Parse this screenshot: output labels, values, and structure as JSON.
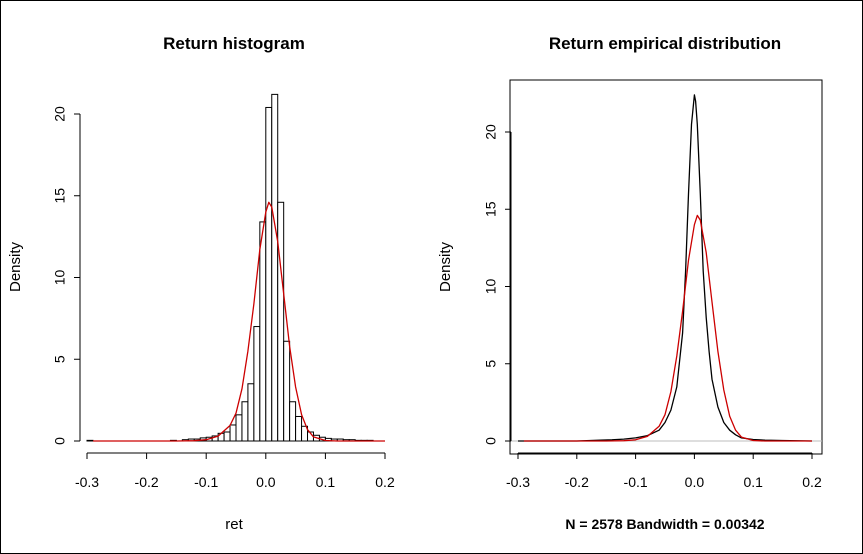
{
  "chart_data": [
    {
      "type": "histogram",
      "title": "Return histogram",
      "xlabel": "ret",
      "ylabel": "Density",
      "xlim": [
        -0.3,
        0.2
      ],
      "ylim": [
        0,
        21
      ],
      "x_ticks": [
        -0.3,
        -0.2,
        -0.1,
        0.0,
        0.1,
        0.2
      ],
      "x_tick_labels": [
        "-0.3",
        "-0.2",
        "-0.1",
        "0.0",
        "0.1",
        "0.2"
      ],
      "y_ticks": [
        0,
        5,
        10,
        15,
        20
      ],
      "y_tick_labels": [
        "0",
        "5",
        "10",
        "15",
        "20"
      ],
      "bin_width": 0.01,
      "bins": [
        {
          "x0": -0.3,
          "x1": -0.29,
          "density": 0.04
        },
        {
          "x0": -0.16,
          "x1": -0.15,
          "density": 0.04
        },
        {
          "x0": -0.14,
          "x1": -0.13,
          "density": 0.08
        },
        {
          "x0": -0.13,
          "x1": -0.12,
          "density": 0.12
        },
        {
          "x0": -0.12,
          "x1": -0.11,
          "density": 0.12
        },
        {
          "x0": -0.11,
          "x1": -0.1,
          "density": 0.19
        },
        {
          "x0": -0.1,
          "x1": -0.09,
          "density": 0.23
        },
        {
          "x0": -0.09,
          "x1": -0.08,
          "density": 0.31
        },
        {
          "x0": -0.08,
          "x1": -0.07,
          "density": 0.47
        },
        {
          "x0": -0.07,
          "x1": -0.06,
          "density": 0.55
        },
        {
          "x0": -0.06,
          "x1": -0.05,
          "density": 0.98
        },
        {
          "x0": -0.05,
          "x1": -0.04,
          "density": 1.6
        },
        {
          "x0": -0.04,
          "x1": -0.03,
          "density": 2.4
        },
        {
          "x0": -0.03,
          "x1": -0.02,
          "density": 3.5
        },
        {
          "x0": -0.02,
          "x1": -0.01,
          "density": 7.0
        },
        {
          "x0": -0.01,
          "x1": 0.0,
          "density": 13.4
        },
        {
          "x0": 0.0,
          "x1": 0.01,
          "density": 20.4
        },
        {
          "x0": 0.01,
          "x1": 0.02,
          "density": 21.2
        },
        {
          "x0": 0.02,
          "x1": 0.03,
          "density": 14.6
        },
        {
          "x0": 0.03,
          "x1": 0.04,
          "density": 6.1
        },
        {
          "x0": 0.04,
          "x1": 0.05,
          "density": 2.4
        },
        {
          "x0": 0.05,
          "x1": 0.06,
          "density": 1.5
        },
        {
          "x0": 0.06,
          "x1": 0.07,
          "density": 0.9
        },
        {
          "x0": 0.07,
          "x1": 0.08,
          "density": 0.55
        },
        {
          "x0": 0.08,
          "x1": 0.09,
          "density": 0.35
        },
        {
          "x0": 0.09,
          "x1": 0.1,
          "density": 0.23
        },
        {
          "x0": 0.1,
          "x1": 0.11,
          "density": 0.16
        },
        {
          "x0": 0.11,
          "x1": 0.12,
          "density": 0.12
        },
        {
          "x0": 0.12,
          "x1": 0.13,
          "density": 0.12
        },
        {
          "x0": 0.13,
          "x1": 0.14,
          "density": 0.08
        },
        {
          "x0": 0.14,
          "x1": 0.15,
          "density": 0.08
        },
        {
          "x0": 0.15,
          "x1": 0.16,
          "density": 0.04
        },
        {
          "x0": 0.16,
          "x1": 0.17,
          "density": 0.04
        },
        {
          "x0": 0.17,
          "x1": 0.18,
          "density": 0.04
        }
      ],
      "series": [
        {
          "type": "line",
          "color": "#cc0000",
          "x": [
            -0.29,
            -0.15,
            -0.12,
            -0.1,
            -0.08,
            -0.06,
            -0.05,
            -0.04,
            -0.03,
            -0.02,
            -0.01,
            0.0,
            0.005,
            0.01,
            0.02,
            0.03,
            0.04,
            0.05,
            0.06,
            0.07,
            0.08,
            0.1,
            0.12,
            0.2
          ],
          "y": [
            0.0,
            0.0,
            0.02,
            0.08,
            0.3,
            0.95,
            1.7,
            3.2,
            5.5,
            8.4,
            11.7,
            14.0,
            14.6,
            14.3,
            12.2,
            9.0,
            5.8,
            3.3,
            1.6,
            0.7,
            0.25,
            0.03,
            0.0,
            0.0
          ]
        }
      ]
    },
    {
      "type": "line",
      "title": "Return empirical distribution",
      "xlabel": "N = 2578   Bandwidth = 0.00342",
      "ylabel": "Density",
      "xlim": [
        -0.3,
        0.2
      ],
      "ylim": [
        0,
        22.5
      ],
      "x_ticks": [
        -0.3,
        -0.2,
        -0.1,
        0.0,
        0.1,
        0.2
      ],
      "x_tick_labels": [
        "-0.3",
        "-0.2",
        "-0.1",
        "0.0",
        "0.1",
        "0.2"
      ],
      "y_ticks": [
        0,
        5,
        10,
        15,
        20
      ],
      "y_tick_labels": [
        "0",
        "5",
        "10",
        "15",
        "20"
      ],
      "baseline_color": "#bebebe",
      "series": [
        {
          "type": "line",
          "color": "#000000",
          "x": [
            -0.3,
            -0.2,
            -0.16,
            -0.14,
            -0.12,
            -0.1,
            -0.08,
            -0.06,
            -0.05,
            -0.04,
            -0.03,
            -0.02,
            -0.015,
            -0.01,
            -0.005,
            0.0,
            0.002,
            0.005,
            0.01,
            0.015,
            0.02,
            0.025,
            0.03,
            0.04,
            0.05,
            0.06,
            0.07,
            0.08,
            0.1,
            0.12,
            0.15,
            0.2
          ],
          "y": [
            0.0,
            0.0,
            0.05,
            0.08,
            0.12,
            0.2,
            0.35,
            0.7,
            1.2,
            2.0,
            3.5,
            7.0,
            11.0,
            16.0,
            20.5,
            22.4,
            22.0,
            20.5,
            16.0,
            11.0,
            8.0,
            5.8,
            4.0,
            2.2,
            1.2,
            0.7,
            0.4,
            0.2,
            0.1,
            0.05,
            0.03,
            0.0
          ]
        },
        {
          "type": "line",
          "color": "#cc0000",
          "x": [
            -0.29,
            -0.15,
            -0.12,
            -0.1,
            -0.08,
            -0.06,
            -0.05,
            -0.04,
            -0.03,
            -0.02,
            -0.01,
            0.0,
            0.005,
            0.01,
            0.02,
            0.03,
            0.04,
            0.05,
            0.06,
            0.07,
            0.08,
            0.1,
            0.12,
            0.2
          ],
          "y": [
            0.0,
            0.0,
            0.02,
            0.08,
            0.3,
            0.95,
            1.7,
            3.2,
            5.5,
            8.4,
            11.7,
            14.0,
            14.6,
            14.3,
            12.2,
            9.0,
            5.8,
            3.3,
            1.6,
            0.7,
            0.25,
            0.03,
            0.0,
            0.0
          ]
        }
      ]
    }
  ]
}
